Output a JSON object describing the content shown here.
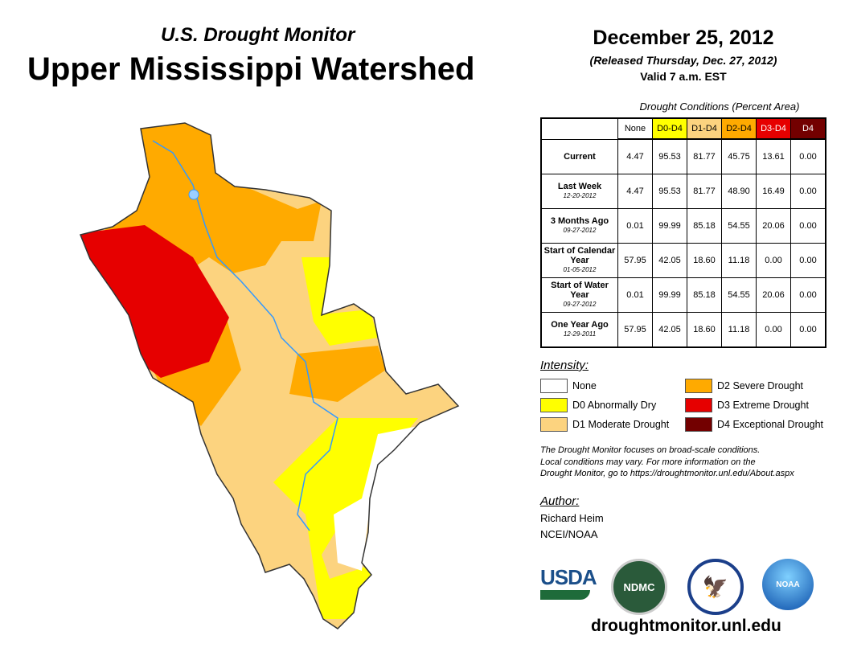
{
  "header": {
    "subtitle": "U.S. Drought Monitor",
    "title": "Upper Mississippi Watershed",
    "date": "December 25, 2012",
    "released": "(Released Thursday, Dec. 27, 2012)",
    "valid": "Valid 7 a.m. EST"
  },
  "table": {
    "caption": "Drought Conditions (Percent Area)",
    "columns": [
      {
        "label": "None",
        "color": "#ffffff",
        "text": "#000"
      },
      {
        "label": "D0-D4",
        "color": "#ffff00",
        "text": "#000"
      },
      {
        "label": "D1-D4",
        "color": "#fcd37f",
        "text": "#000"
      },
      {
        "label": "D2-D4",
        "color": "#ffaa00",
        "text": "#000"
      },
      {
        "label": "D3-D4",
        "color": "#e60000",
        "text": "#fff"
      },
      {
        "label": "D4",
        "color": "#730000",
        "text": "#fff"
      }
    ],
    "rows": [
      {
        "label": "Current",
        "date": "",
        "values": [
          "4.47",
          "95.53",
          "81.77",
          "45.75",
          "13.61",
          "0.00"
        ]
      },
      {
        "label": "Last Week",
        "date": "12-20-2012",
        "values": [
          "4.47",
          "95.53",
          "81.77",
          "48.90",
          "16.49",
          "0.00"
        ]
      },
      {
        "label": "3 Months Ago",
        "date": "09-27-2012",
        "values": [
          "0.01",
          "99.99",
          "85.18",
          "54.55",
          "20.06",
          "0.00"
        ]
      },
      {
        "label": "Start of Calendar Year",
        "date": "01-05-2012",
        "values": [
          "57.95",
          "42.05",
          "18.60",
          "11.18",
          "0.00",
          "0.00"
        ]
      },
      {
        "label": "Start of Water Year",
        "date": "09-27-2012",
        "values": [
          "0.01",
          "99.99",
          "85.18",
          "54.55",
          "20.06",
          "0.00"
        ]
      },
      {
        "label": "One Year Ago",
        "date": "12-29-2011",
        "values": [
          "57.95",
          "42.05",
          "18.60",
          "11.18",
          "0.00",
          "0.00"
        ]
      }
    ]
  },
  "legend": {
    "title": "Intensity:",
    "items": [
      {
        "label": "None",
        "color": "#ffffff"
      },
      {
        "label": "D0 Abnormally Dry",
        "color": "#ffff00"
      },
      {
        "label": "D1 Moderate Drought",
        "color": "#fcd37f"
      },
      {
        "label": "D2 Severe Drought",
        "color": "#ffaa00"
      },
      {
        "label": "D3 Extreme Drought",
        "color": "#e60000"
      },
      {
        "label": "D4 Exceptional Drought",
        "color": "#730000"
      }
    ]
  },
  "note": [
    "The Drought Monitor focuses on broad-scale conditions.",
    "Local conditions may vary. For more information on the",
    "Drought Monitor, go to https://droughtmonitor.unl.edu/About.aspx"
  ],
  "author": {
    "title": "Author:",
    "name": "Richard Heim",
    "org": "NCEI/NOAA"
  },
  "logos": {
    "usda": "USDA",
    "ndmc": "NDMC",
    "noaa": "NOAA"
  },
  "footer_url": "droughtmonitor.unl.edu"
}
